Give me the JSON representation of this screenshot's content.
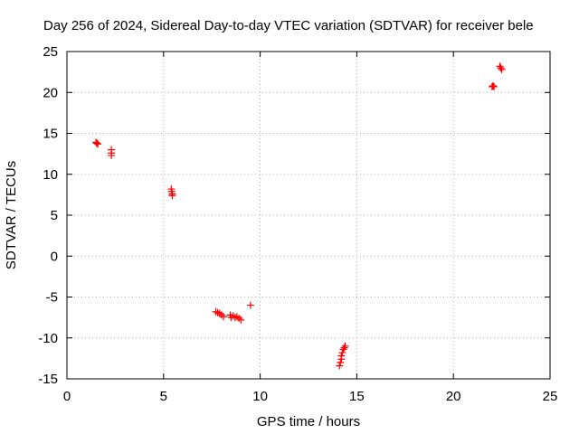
{
  "chart_data": {
    "type": "scatter",
    "title": "Day 256 of 2024, Sidereal Day-to-day VTEC variation (SDTVAR) for receiver bele",
    "xlabel": "GPS time / hours",
    "ylabel": "SDTVAR / TECUs",
    "xlim": [
      0,
      25
    ],
    "ylim": [
      -15,
      25
    ],
    "xticks": [
      0,
      5,
      10,
      15,
      20,
      25
    ],
    "yticks": [
      -15,
      -10,
      -5,
      0,
      5,
      10,
      15,
      20,
      25
    ],
    "grid": true,
    "marker": "+",
    "color": "#ff0000",
    "series": [
      {
        "name": "SDTVAR",
        "points": [
          [
            1.5,
            13.9
          ],
          [
            1.55,
            13.8
          ],
          [
            1.6,
            13.7
          ],
          [
            2.3,
            13.0
          ],
          [
            2.3,
            12.6
          ],
          [
            2.3,
            12.3
          ],
          [
            5.4,
            8.2
          ],
          [
            5.42,
            7.9
          ],
          [
            5.45,
            7.6
          ],
          [
            5.45,
            7.4
          ],
          [
            7.7,
            -6.8
          ],
          [
            7.8,
            -6.9
          ],
          [
            7.9,
            -7.0
          ],
          [
            8.0,
            -7.2
          ],
          [
            8.1,
            -7.4
          ],
          [
            8.45,
            -7.2
          ],
          [
            8.5,
            -7.5
          ],
          [
            8.6,
            -7.3
          ],
          [
            8.7,
            -7.5
          ],
          [
            8.8,
            -7.4
          ],
          [
            8.9,
            -7.6
          ],
          [
            9.0,
            -7.8
          ],
          [
            9.5,
            -6.0
          ],
          [
            14.1,
            -13.4
          ],
          [
            14.15,
            -13.0
          ],
          [
            14.2,
            -12.6
          ],
          [
            14.2,
            -12.2
          ],
          [
            14.25,
            -11.8
          ],
          [
            14.3,
            -11.4
          ],
          [
            14.35,
            -11.2
          ],
          [
            14.4,
            -11.0
          ],
          [
            22.0,
            20.7
          ],
          [
            22.05,
            20.8
          ],
          [
            22.1,
            20.7
          ],
          [
            22.4,
            23.2
          ],
          [
            22.45,
            23.0
          ],
          [
            22.5,
            22.8
          ]
        ]
      }
    ]
  }
}
